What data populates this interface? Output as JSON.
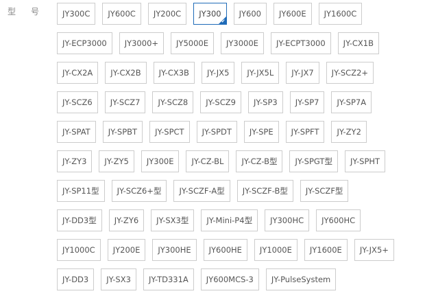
{
  "label": "型号",
  "selected": "JY300",
  "accent": "#1f6bb8",
  "rows": [
    [
      "JY300C",
      "JY600C",
      "JY200C",
      "JY300",
      "JY600",
      "JY600E",
      "JY1600C"
    ],
    [
      "JY-ECP3000",
      "JY3000+",
      "JY5000E",
      "JY3000E",
      "JY-ECPT3000",
      "JY-CX1B"
    ],
    [
      "JY-CX2A",
      "JY-CX2B",
      "JY-CX3B",
      "JY-JX5",
      "JY-JX5L",
      "JY-JX7",
      "JY-SCZ2+"
    ],
    [
      "JY-SCZ6",
      "JY-SCZ7",
      "JY-SCZ8",
      "JY-SCZ9",
      "JY-SP3",
      "JY-SP7",
      "JY-SP7A"
    ],
    [
      "JY-SPAT",
      "JY-SPBT",
      "JY-SPCT",
      "JY-SPDT",
      "JY-SPE",
      "JY-SPFT",
      "JY-ZY2"
    ],
    [
      "JY-ZY3",
      "JY-ZY5",
      "JY300E",
      "JY-CZ-BL",
      "JY-CZ-B型",
      "JY-SPGT型",
      "JY-SPHT"
    ],
    [
      "JY-SP11型",
      "JY-SCZ6+型",
      "JY-SCZF-A型",
      "JY-SCZF-B型",
      "JY-SCZF型"
    ],
    [
      "JY-DD3型",
      "JY-ZY6",
      "JY-SX3型",
      "JY-Mini-P4型",
      "JY300HC",
      "JY600HC"
    ],
    [
      "JY1000C",
      "JY200E",
      "JY300HE",
      "JY600HE",
      "JY1000E",
      "JY1600E",
      "JY-JX5+"
    ],
    [
      "JY-DD3",
      "JY-SX3",
      "JY-TD331A",
      "JY600MCS-3",
      "JY-PulseSystem"
    ]
  ]
}
